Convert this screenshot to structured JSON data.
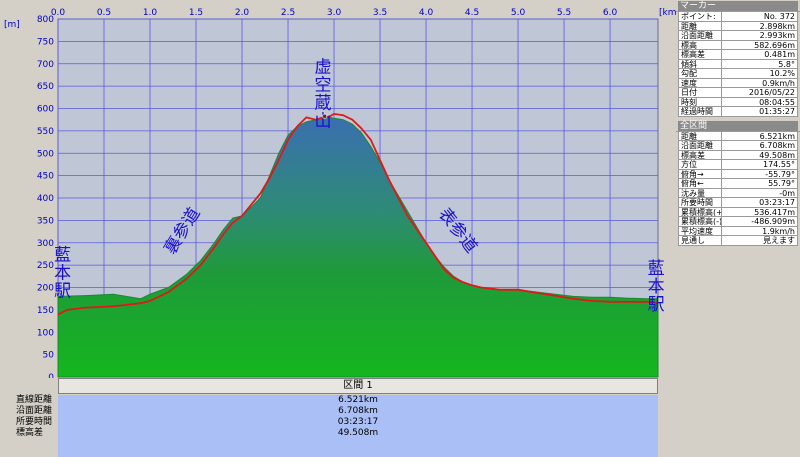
{
  "chart_data": {
    "type": "area",
    "x_unit": "[km]",
    "y_unit": "[m]",
    "xlim": [
      0.0,
      6.521
    ],
    "ylim": [
      0,
      800
    ],
    "x_ticks": [
      "0.0",
      "0.5",
      "1.0",
      "1.5",
      "2.0",
      "2.5",
      "3.0",
      "3.5",
      "4.0",
      "4.5",
      "5.0",
      "5.5",
      "6.0"
    ],
    "y_ticks": [
      "0",
      "50",
      "100",
      "150",
      "200",
      "250",
      "300",
      "350",
      "400",
      "450",
      "500",
      "550",
      "600",
      "650",
      "700",
      "750",
      "800"
    ],
    "grid": true,
    "series": [
      {
        "color": "#1a8a2e",
        "x": [
          0,
          0.3,
          0.6,
          0.9,
          1.0,
          1.2,
          1.4,
          1.55,
          1.7,
          1.8,
          1.9,
          2.0,
          2.1,
          2.2,
          2.3,
          2.4,
          2.5,
          2.6,
          2.7,
          2.8,
          2.9,
          2.95,
          3.0,
          3.1,
          3.2,
          3.3,
          3.4,
          3.5,
          3.6,
          3.7,
          3.8,
          3.9,
          4.0,
          4.1,
          4.2,
          4.3,
          4.4,
          4.5,
          4.6,
          4.8,
          5.0,
          5.2,
          5.4,
          5.6,
          5.8,
          6.0,
          6.2,
          6.4,
          6.521
        ],
        "y": [
          180,
          182,
          185,
          175,
          185,
          200,
          230,
          260,
          300,
          330,
          355,
          360,
          380,
          400,
          450,
          500,
          540,
          560,
          570,
          575,
          578,
          580,
          578,
          575,
          565,
          545,
          515,
          480,
          440,
          405,
          370,
          335,
          300,
          270,
          245,
          225,
          212,
          205,
          200,
          195,
          195,
          190,
          185,
          180,
          178,
          178,
          176,
          175,
          175
        ]
      },
      {
        "color": "#e01818",
        "x": [
          0,
          0.1,
          0.3,
          0.6,
          0.9,
          1.0,
          1.2,
          1.4,
          1.55,
          1.7,
          1.8,
          1.9,
          2.0,
          2.1,
          2.2,
          2.3,
          2.4,
          2.5,
          2.6,
          2.7,
          2.8,
          2.88,
          2.95,
          3.0,
          3.1,
          3.2,
          3.3,
          3.4,
          3.5,
          3.6,
          3.7,
          3.8,
          3.9,
          4.0,
          4.1,
          4.2,
          4.3,
          4.4,
          4.5,
          4.6,
          4.8,
          5.0,
          5.2,
          5.4,
          5.6,
          5.8,
          6.0,
          6.2,
          6.4,
          6.521
        ],
        "y": [
          140,
          150,
          155,
          158,
          165,
          170,
          190,
          220,
          250,
          290,
          320,
          345,
          360,
          385,
          410,
          445,
          485,
          530,
          560,
          580,
          575,
          580,
          582,
          588,
          585,
          575,
          555,
          530,
          485,
          440,
          400,
          360,
          330,
          300,
          270,
          240,
          222,
          212,
          205,
          200,
          195,
          195,
          188,
          182,
          175,
          170,
          168,
          168,
          168,
          165
        ]
      }
    ],
    "annotations": [
      {
        "text": "藍本駅",
        "x": 0.05,
        "y": 260
      },
      {
        "text": "裏参道",
        "x": 1.4,
        "y": 320
      },
      {
        "text": "虚空蔵山",
        "x": 2.88,
        "y": 680
      },
      {
        "text": "表参道",
        "x": 4.3,
        "y": 320
      },
      {
        "text": "藍本駅",
        "x": 6.5,
        "y": 230
      }
    ]
  },
  "bottom": {
    "header": "区間 1",
    "rows": [
      {
        "label": "直線距離",
        "value": "6.521km"
      },
      {
        "label": "沿面距離",
        "value": "6.708km"
      },
      {
        "label": "所要時間",
        "value": "03:23:17"
      },
      {
        "label": "標高差",
        "value": "49.508m"
      }
    ]
  },
  "marker": {
    "title": "マーカー",
    "rows": [
      {
        "k": "ポイント:",
        "v": "No. 372"
      },
      {
        "k": "距離",
        "v": "2.898km"
      },
      {
        "k": "沿面距離",
        "v": "2.993km"
      },
      {
        "k": "標高",
        "v": "582.696m"
      },
      {
        "k": "標高差",
        "v": "0.481m"
      },
      {
        "k": "傾斜",
        "v": "5.8°"
      },
      {
        "k": "勾配",
        "v": "10.2%"
      },
      {
        "k": "速度",
        "v": "0.9km/h"
      },
      {
        "k": "日付",
        "v": "2016/05/22"
      },
      {
        "k": "時刻",
        "v": "08:04:55"
      },
      {
        "k": "経過時間",
        "v": "01:35:27"
      }
    ]
  },
  "overall": {
    "title": "全区間",
    "rows": [
      {
        "k": "距離",
        "v": "6.521km"
      },
      {
        "k": "沿面距離",
        "v": "6.708km"
      },
      {
        "k": "標高差",
        "v": "49.508m"
      },
      {
        "k": "方位",
        "v": "174.55°"
      },
      {
        "k": "俯角→",
        "v": "-55.79°"
      },
      {
        "k": "俯角←",
        "v": "55.79°"
      },
      {
        "k": "沈み量",
        "v": "-0m"
      },
      {
        "k": "所要時間",
        "v": "03:23:17"
      },
      {
        "k": "累積標高(+)",
        "v": "536.417m"
      },
      {
        "k": "累積標高(-)",
        "v": "-486.909m"
      },
      {
        "k": "平均速度",
        "v": "1.9km/h"
      },
      {
        "k": "見通し",
        "v": "見えます"
      }
    ]
  }
}
